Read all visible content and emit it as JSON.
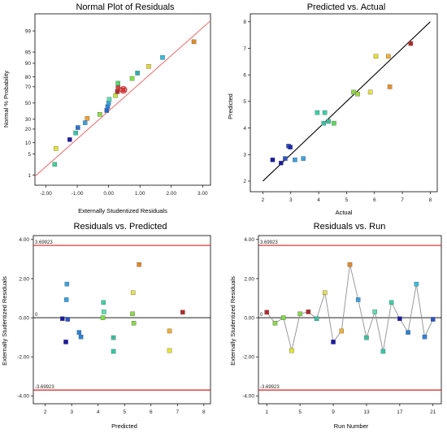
{
  "chart_data": [
    {
      "type": "scatter",
      "title": "Normal Plot of Residuals",
      "xlabel": "Externally Studentized Residuals",
      "ylabel": "Normal % Probability",
      "xlim": [
        -2.35,
        3.25
      ],
      "x_ticks": [
        -2,
        -1,
        0,
        1,
        2,
        3
      ],
      "x_tick_labels": [
        "-2.00",
        "-1.00",
        "0.00",
        "1.00",
        "2.00",
        "3.00"
      ],
      "y_scale": "probability",
      "y_ticks": [
        1,
        5,
        10,
        20,
        30,
        50,
        70,
        80,
        90,
        95,
        99
      ],
      "y_tick_labels": [
        "1",
        "5",
        "10",
        "20",
        "30",
        "50",
        "70",
        "80",
        "90",
        "95",
        "99"
      ],
      "grid": false,
      "reference_line": {
        "x": [
          -2.35,
          3.25
        ],
        "y": [
          0.9,
          99.6
        ],
        "color": "#e87a7a"
      },
      "points": [
        {
          "x": -1.72,
          "y": 2.4,
          "color": "#3fcf9c"
        },
        {
          "x": -1.68,
          "y": 7.1,
          "color": "#e6e62e"
        },
        {
          "x": -1.24,
          "y": 11.9,
          "color": "#1a1aa6"
        },
        {
          "x": -1.05,
          "y": 16.7,
          "color": "#32c8aa"
        },
        {
          "x": -0.98,
          "y": 21.4,
          "color": "#2d72d2"
        },
        {
          "x": -0.75,
          "y": 26.2,
          "color": "#3aa1e0"
        },
        {
          "x": -0.68,
          "y": 31.0,
          "color": "#f2a134"
        },
        {
          "x": -0.28,
          "y": 35.7,
          "color": "#8dde46"
        },
        {
          "x": -0.06,
          "y": 40.5,
          "color": "#1f68c9"
        },
        {
          "x": -0.03,
          "y": 45.2,
          "color": "#2c82d6"
        },
        {
          "x": 0.0,
          "y": 50.0,
          "color": "#3aa0e0"
        },
        {
          "x": 0.02,
          "y": 54.8,
          "color": "#5be0b0"
        },
        {
          "x": 0.22,
          "y": 59.5,
          "color": "#c4e63a"
        },
        {
          "x": 0.28,
          "y": 64.3,
          "color": "#b52a2a"
        },
        {
          "x": 0.3,
          "y": 69.0,
          "color": "#d04040"
        },
        {
          "x": 0.3,
          "y": 73.8,
          "color": "#4fd868"
        },
        {
          "x": 0.75,
          "y": 78.6,
          "color": "#7be040"
        },
        {
          "x": 0.92,
          "y": 83.3,
          "color": "#2ab0b0"
        },
        {
          "x": 1.28,
          "y": 88.1,
          "color": "#e4d83a"
        },
        {
          "x": 1.72,
          "y": 92.9,
          "color": "#33bde0"
        },
        {
          "x": 2.72,
          "y": 97.6,
          "color": "#e08a2a"
        }
      ],
      "highlight_point": {
        "x": 0.47,
        "y": 66.5,
        "color": "#e03030"
      }
    },
    {
      "type": "scatter",
      "title": "Predicted vs. Actual",
      "xlabel": "Actual",
      "ylabel": "Predicted",
      "xlim": [
        1.55,
        8.25
      ],
      "ylim": [
        1.6,
        8.3
      ],
      "x_ticks": [
        2,
        3,
        4,
        5,
        6,
        7,
        8
      ],
      "y_ticks": [
        2,
        3,
        4,
        5,
        6,
        7,
        8
      ],
      "x_tick_labels": [
        "2",
        "3",
        "4",
        "5",
        "6",
        "7",
        "8"
      ],
      "y_tick_labels": [
        "2",
        "3",
        "4",
        "5",
        "6",
        "7",
        "8"
      ],
      "grid": false,
      "reference_line": {
        "x": [
          2,
          8
        ],
        "y": [
          2,
          8
        ],
        "color": "#000000"
      },
      "points": [
        {
          "x": 2.35,
          "y": 2.8,
          "color": "#1a1aa6"
        },
        {
          "x": 2.65,
          "y": 2.68,
          "color": "#1a1aa6"
        },
        {
          "x": 2.8,
          "y": 2.85,
          "color": "#2c52c8"
        },
        {
          "x": 2.92,
          "y": 3.32,
          "color": "#2c52c8"
        },
        {
          "x": 2.98,
          "y": 3.28,
          "color": "#1a2ab0"
        },
        {
          "x": 3.15,
          "y": 2.8,
          "color": "#3aa1e0"
        },
        {
          "x": 3.45,
          "y": 2.85,
          "color": "#3aa1e0"
        },
        {
          "x": 3.95,
          "y": 4.58,
          "color": "#3ad0a8"
        },
        {
          "x": 4.18,
          "y": 4.18,
          "color": "#3ac0a0"
        },
        {
          "x": 4.22,
          "y": 4.58,
          "color": "#3ad0a8"
        },
        {
          "x": 4.35,
          "y": 4.25,
          "color": "#3ac0a0"
        },
        {
          "x": 4.55,
          "y": 4.18,
          "color": "#5cd860"
        },
        {
          "x": 5.25,
          "y": 5.35,
          "color": "#8ad84a"
        },
        {
          "x": 5.4,
          "y": 5.28,
          "color": "#a0d840"
        },
        {
          "x": 5.85,
          "y": 5.35,
          "color": "#e6e050"
        },
        {
          "x": 6.05,
          "y": 6.7,
          "color": "#e6e030"
        },
        {
          "x": 6.5,
          "y": 6.7,
          "color": "#f0b030"
        },
        {
          "x": 6.55,
          "y": 5.55,
          "color": "#e89030"
        },
        {
          "x": 7.3,
          "y": 7.18,
          "color": "#b52a2a"
        }
      ]
    },
    {
      "type": "scatter",
      "title": "Residuals vs. Predicted",
      "xlabel": "Predicted",
      "ylabel": "Externally Studentized Residuals",
      "xlim": [
        1.55,
        8.25
      ],
      "ylim": [
        -4.4,
        4.2
      ],
      "x_ticks": [
        2,
        3,
        4,
        5,
        6,
        7,
        8
      ],
      "x_tick_labels": [
        "2",
        "3",
        "4",
        "5",
        "6",
        "7",
        "8"
      ],
      "y_ticks": [
        -4,
        -2,
        0,
        2,
        4
      ],
      "y_tick_labels": [
        "-4.00",
        "-2.00",
        "0.00",
        "2.00",
        "4.00"
      ],
      "grid": false,
      "hlines": [
        {
          "y": 3.69923,
          "label": "3.69923",
          "color": "#d42020"
        },
        {
          "y": 0,
          "label": "0",
          "color": "#000000"
        },
        {
          "y": -3.69923,
          "label": "-3.69923",
          "color": "#d42020"
        }
      ],
      "points": [
        {
          "x": 2.65,
          "y": -0.05,
          "color": "#1a1aa6"
        },
        {
          "x": 2.78,
          "y": -1.24,
          "color": "#1a1aa6"
        },
        {
          "x": 2.82,
          "y": 1.72,
          "color": "#3aa1e0"
        },
        {
          "x": 2.8,
          "y": 0.92,
          "color": "#3aa1e0"
        },
        {
          "x": 2.85,
          "y": -0.08,
          "color": "#2c52c8"
        },
        {
          "x": 3.28,
          "y": -0.75,
          "color": "#2c82d6"
        },
        {
          "x": 3.35,
          "y": -0.98,
          "color": "#2c82d6"
        },
        {
          "x": 4.2,
          "y": 0.78,
          "color": "#3ad0a8"
        },
        {
          "x": 4.22,
          "y": 0.3,
          "color": "#5be0b0"
        },
        {
          "x": 4.18,
          "y": 0.0,
          "color": "#7be040"
        },
        {
          "x": 4.58,
          "y": -1.02,
          "color": "#3ac0a0"
        },
        {
          "x": 4.58,
          "y": -1.72,
          "color": "#32c8aa"
        },
        {
          "x": 5.3,
          "y": 0.2,
          "color": "#8ad84a"
        },
        {
          "x": 5.32,
          "y": 1.28,
          "color": "#e6e050"
        },
        {
          "x": 5.35,
          "y": -0.28,
          "color": "#8ad84a"
        },
        {
          "x": 5.55,
          "y": 2.72,
          "color": "#e08a2a"
        },
        {
          "x": 6.7,
          "y": -0.68,
          "color": "#f0b030"
        },
        {
          "x": 6.7,
          "y": -1.68,
          "color": "#e6e62e"
        },
        {
          "x": 7.2,
          "y": 0.28,
          "color": "#b52a2a"
        }
      ]
    },
    {
      "type": "line",
      "title": "Residuals vs. Run",
      "xlabel": "Run Number",
      "ylabel": "Externally Studentized Residuals",
      "xlim": [
        0,
        22
      ],
      "ylim": [
        -4.4,
        4.2
      ],
      "x_ticks": [
        1,
        5,
        9,
        13,
        17,
        21
      ],
      "x_tick_labels": [
        "1",
        "5",
        "9",
        "13",
        "17",
        "21"
      ],
      "y_ticks": [
        -4,
        -2,
        0,
        2,
        4
      ],
      "y_tick_labels": [
        "-4.00",
        "-2.00",
        "0.00",
        "2.00",
        "4.00"
      ],
      "grid": false,
      "hlines": [
        {
          "y": 3.69923,
          "label": "3.69923",
          "color": "#d42020"
        },
        {
          "y": 0,
          "label": "0",
          "color": "#000000"
        },
        {
          "y": -3.69923,
          "label": "-3.69923",
          "color": "#d42020"
        }
      ],
      "line_color": "#909090",
      "points": [
        {
          "x": 1,
          "y": 0.28,
          "color": "#b52a2a"
        },
        {
          "x": 2,
          "y": -0.28,
          "color": "#8ad84a"
        },
        {
          "x": 3,
          "y": 0.0,
          "color": "#7be040"
        },
        {
          "x": 4,
          "y": -1.68,
          "color": "#e6e62e"
        },
        {
          "x": 5,
          "y": 0.2,
          "color": "#8ad84a"
        },
        {
          "x": 6,
          "y": 0.3,
          "color": "#b52a2a"
        },
        {
          "x": 7,
          "y": -0.05,
          "color": "#3ac0a0"
        },
        {
          "x": 8,
          "y": 1.28,
          "color": "#e6e050"
        },
        {
          "x": 9,
          "y": -1.24,
          "color": "#1a1aa6"
        },
        {
          "x": 10,
          "y": -0.68,
          "color": "#f0b030"
        },
        {
          "x": 11,
          "y": 2.72,
          "color": "#e08a2a"
        },
        {
          "x": 12,
          "y": 0.92,
          "color": "#3aa1e0"
        },
        {
          "x": 13,
          "y": -1.02,
          "color": "#3ac0a0"
        },
        {
          "x": 14,
          "y": 0.3,
          "color": "#5be0b0"
        },
        {
          "x": 15,
          "y": -1.72,
          "color": "#32c8aa"
        },
        {
          "x": 16,
          "y": 0.78,
          "color": "#3ad0a8"
        },
        {
          "x": 17,
          "y": -0.05,
          "color": "#1a1aa6"
        },
        {
          "x": 18,
          "y": -0.75,
          "color": "#2c82d6"
        },
        {
          "x": 19,
          "y": 1.72,
          "color": "#33bde0"
        },
        {
          "x": 20,
          "y": -0.98,
          "color": "#2c82d6"
        },
        {
          "x": 21,
          "y": -0.08,
          "color": "#2c52c8"
        }
      ]
    }
  ]
}
